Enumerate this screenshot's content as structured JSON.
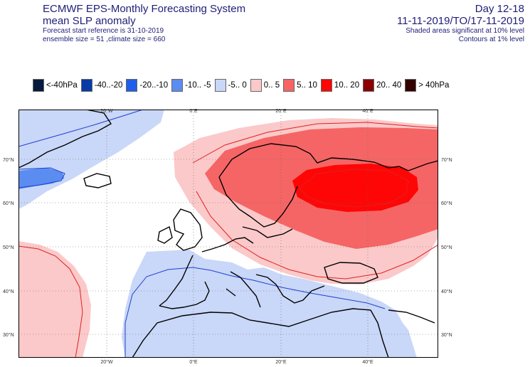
{
  "header": {
    "title": "ECMWF EPS-Monthly Forecasting System",
    "subtitle": "mean SLP anomaly",
    "forecast_start": "Forecast start reference is 31-10-2019",
    "ensemble_info": "ensemble size = 51  ,climate size = 660",
    "day_range": "Day 12-18",
    "date_range": "11-11-2019/TO/17-11-2019",
    "shading_note": "Shaded areas significant at 10% level",
    "contour_note": "Contours at 1% level"
  },
  "legend": [
    {
      "label": "<-40hPa",
      "color": "#061a3d"
    },
    {
      "label": "-40..-20",
      "color": "#0a3aa6"
    },
    {
      "label": "-20..-10",
      "color": "#1f5eea"
    },
    {
      "label": "-10.. -5",
      "color": "#5b8df0"
    },
    {
      "label": "-5..  0",
      "color": "#c9d7f8"
    },
    {
      "label": "0..  5",
      "color": "#fbc9c9"
    },
    {
      "label": "5..  10",
      "color": "#f56565"
    },
    {
      "label": "10..  20",
      "color": "#ff0606"
    },
    {
      "label": "20..  40",
      "color": "#8b0000"
    },
    {
      "label": ">  40hPa",
      "color": "#330000"
    }
  ],
  "map": {
    "lon_labels": [
      "20°W",
      "0°E",
      "20°E",
      "40°E"
    ],
    "lat_labels": [
      "70°N",
      "60°N",
      "50°N",
      "40°N",
      "30°N"
    ]
  }
}
